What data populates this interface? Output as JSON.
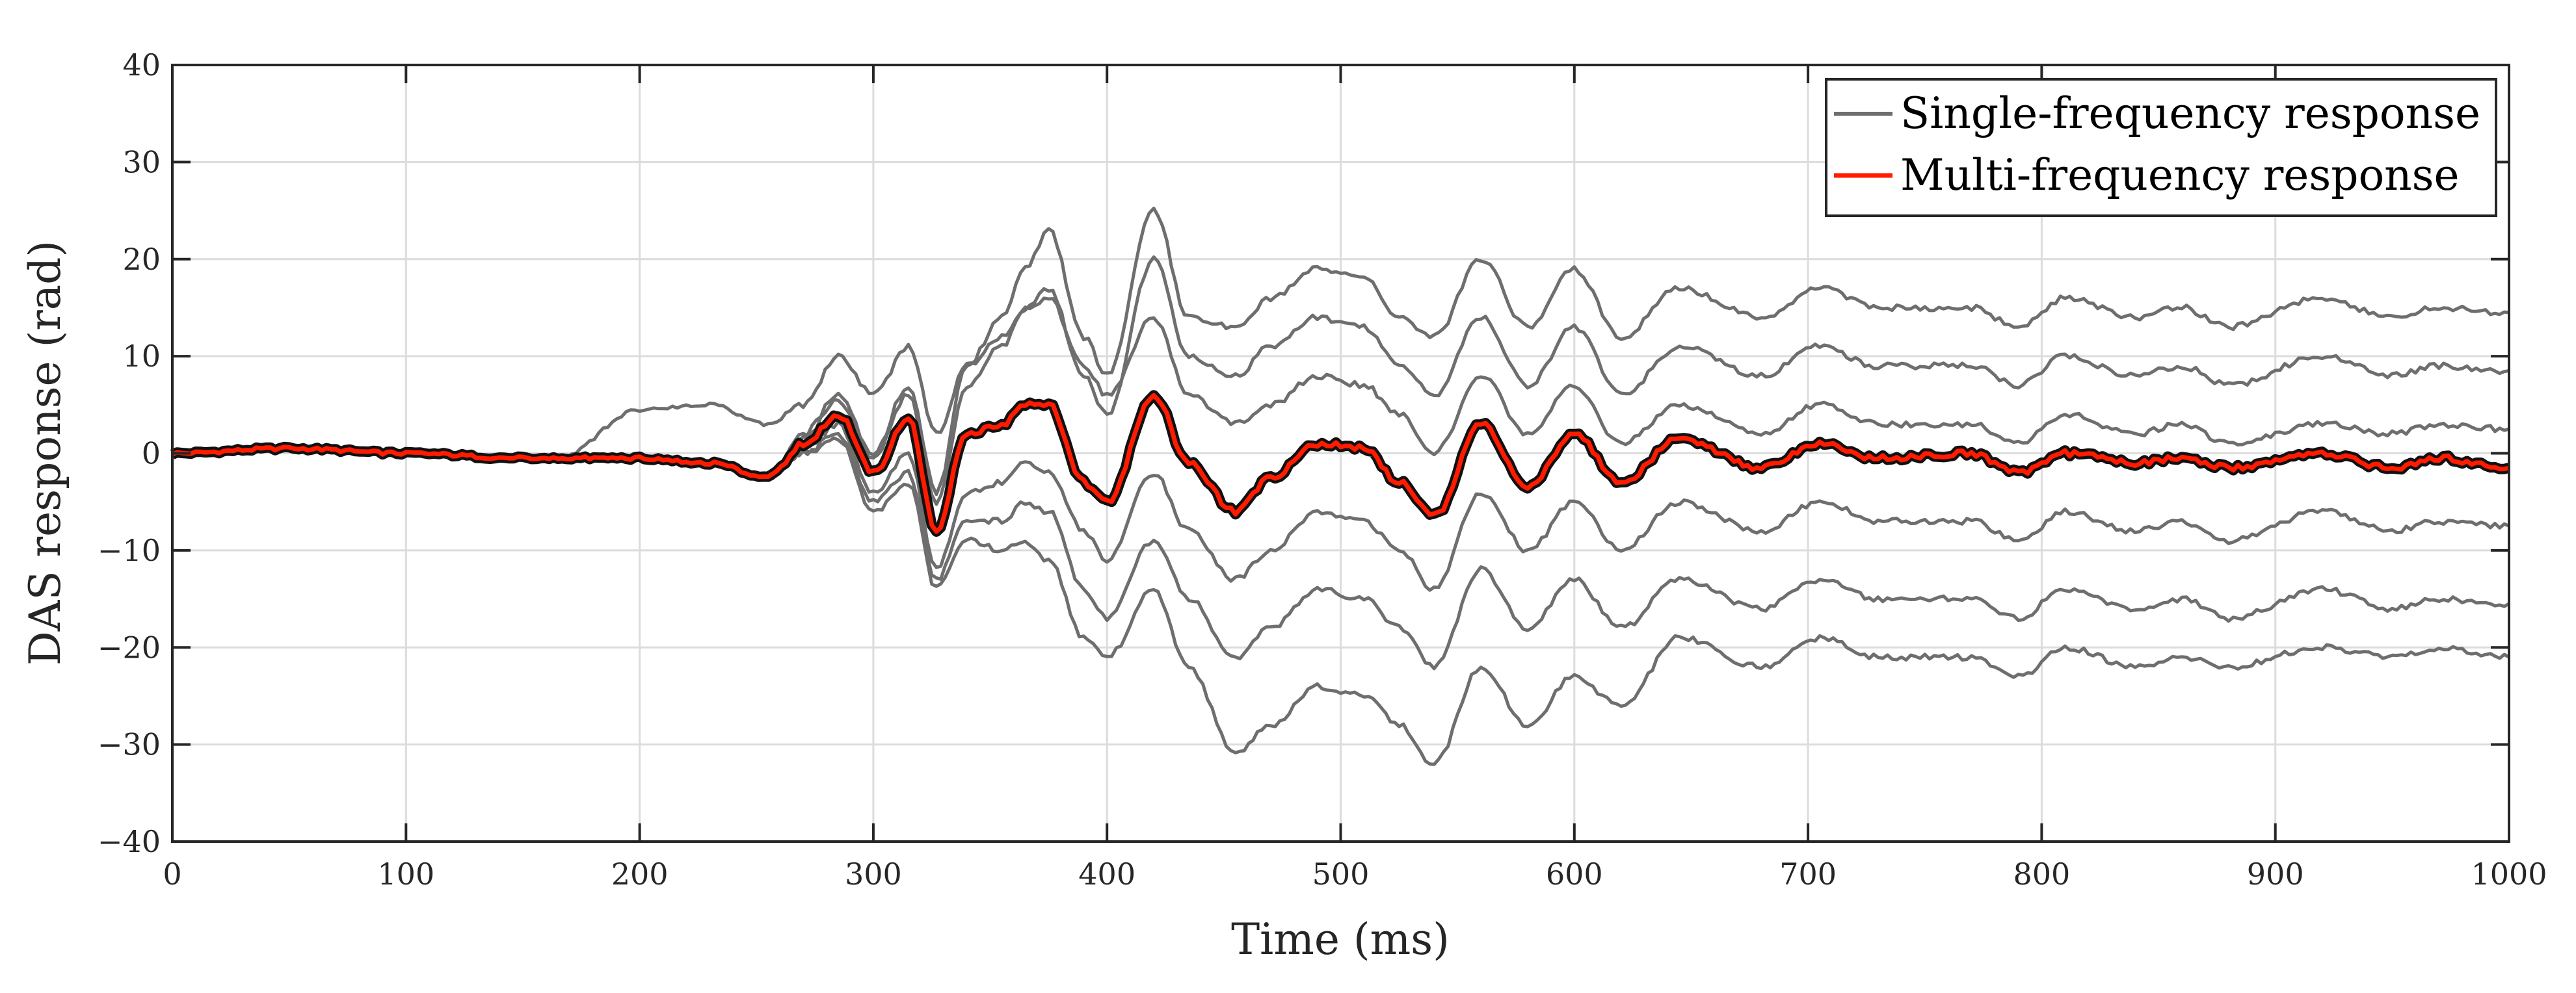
{
  "chart_data": {
    "type": "line",
    "title": "",
    "xlabel": "Time (ms)",
    "ylabel": "DAS response (rad)",
    "xlim": [
      0,
      1000
    ],
    "ylim": [
      -40,
      40
    ],
    "xticks": [
      0,
      100,
      200,
      300,
      400,
      500,
      600,
      700,
      800,
      900,
      1000
    ],
    "yticks": [
      -40,
      -30,
      -20,
      -10,
      0,
      10,
      20,
      30,
      40
    ],
    "xtick_labels": [
      "0",
      "100",
      "200",
      "300",
      "400",
      "500",
      "600",
      "700",
      "800",
      "900",
      "1000"
    ],
    "ytick_labels": [
      "−40",
      "−30",
      "−20",
      "−10",
      "0",
      "10",
      "20",
      "30",
      "40"
    ],
    "grid": true,
    "legend": {
      "position": "top-right",
      "entries": [
        "Single-frequency response",
        "Multi-frequency response"
      ]
    },
    "x": [
      0,
      50,
      100,
      150,
      165,
      200,
      230,
      255,
      270,
      285,
      300,
      315,
      327,
      340,
      355,
      365,
      375,
      390,
      400,
      420,
      435,
      455,
      470,
      490,
      510,
      525,
      540,
      560,
      580,
      600,
      620,
      645,
      680,
      705,
      730,
      770,
      790,
      810,
      840,
      860,
      880,
      920,
      950,
      970,
      1000
    ],
    "series": [
      {
        "name": "Multi-frequency response",
        "color": "#ff1a00",
        "values": [
          0,
          0.5,
          0,
          -0.5,
          -0.5,
          -0.5,
          -1,
          -2.5,
          1,
          4,
          -2,
          3.5,
          -8,
          2,
          3,
          5,
          5,
          -3,
          -5,
          6,
          -1,
          -6,
          -2.5,
          1,
          0.5,
          -3,
          -6.5,
          3,
          -3.5,
          2,
          -3,
          1.5,
          -1.5,
          1,
          -0.5,
          0,
          -2,
          0,
          -1,
          -0.5,
          -1.5,
          0,
          -1.5,
          -0.5,
          -1.5
        ]
      },
      {
        "name": "Single-frequency response",
        "color": "#6e6e6e",
        "offset_end": 15,
        "values": [
          0,
          0.5,
          0,
          -0.5,
          -0.5,
          -0.5,
          -1,
          -2.5,
          2,
          6,
          0,
          7,
          -4,
          9,
          14,
          19,
          23,
          12,
          8,
          25,
          14,
          13,
          16,
          19,
          18,
          14,
          12,
          20,
          13,
          19,
          12,
          17,
          14,
          17,
          15,
          15,
          13,
          16,
          14,
          15,
          13,
          16,
          14,
          15,
          14.5
        ]
      },
      {
        "name": "Single-frequency response",
        "color": "#6e6e6e",
        "offset_end": 9,
        "values": [
          0,
          0.5,
          0,
          -0.5,
          -0.5,
          -0.5,
          -1,
          -2.5,
          1.5,
          5.5,
          -0.5,
          6,
          -5,
          7,
          11,
          15,
          17,
          8,
          4,
          20,
          10,
          8,
          11,
          14,
          13,
          9,
          6,
          14,
          7,
          13,
          6,
          11,
          8,
          11,
          9,
          9,
          7,
          10,
          8,
          9,
          7,
          10,
          8,
          9,
          8.5
        ]
      },
      {
        "name": "Single-frequency response",
        "color": "#6e6e6e",
        "offset_end": 3,
        "values": [
          0,
          0.5,
          0,
          -0.5,
          -0.5,
          4.5,
          5,
          3,
          5,
          10,
          6,
          11,
          2,
          9,
          12,
          15,
          16,
          9,
          6,
          14,
          6,
          3,
          5,
          8,
          7,
          4,
          0,
          8,
          2,
          7,
          1,
          5,
          2,
          5,
          3,
          3,
          1,
          4,
          2,
          3,
          1,
          3,
          2,
          3,
          2.5
        ]
      },
      {
        "name": "Single-frequency response",
        "color": "#6e6e6e",
        "offset_end": -3,
        "values": [
          0,
          0.5,
          0,
          -0.5,
          -0.5,
          -0.5,
          -1,
          -2.5,
          0.5,
          3,
          -4,
          0,
          -12,
          -4,
          -3,
          -1,
          -2,
          -8,
          -11,
          -2,
          -8,
          -13,
          -10,
          -6,
          -7,
          -10,
          -14,
          -4,
          -10,
          -5,
          -10,
          -5,
          -8,
          -5,
          -7,
          -7,
          -9,
          -6,
          -8,
          -7,
          -9,
          -6,
          -8,
          -7,
          -7.5
        ]
      },
      {
        "name": "Single-frequency response",
        "color": "#6e6e6e",
        "offset_end": -9,
        "values": [
          0,
          0.5,
          0,
          -0.5,
          -0.5,
          -0.5,
          -1,
          -2.5,
          0,
          2,
          -5,
          -2,
          -13,
          -7,
          -7,
          -5,
          -6,
          -14,
          -17,
          -9,
          -15,
          -21,
          -18,
          -14,
          -15,
          -18,
          -22,
          -12,
          -18,
          -13,
          -18,
          -13,
          -16,
          -13,
          -15,
          -15,
          -17,
          -14,
          -16,
          -15,
          -17,
          -14,
          -16,
          -15,
          -15.5
        ]
      },
      {
        "name": "Single-frequency response",
        "color": "#6e6e6e",
        "offset_end": -15,
        "values": [
          0,
          0.5,
          0,
          -0.5,
          -0.5,
          -0.5,
          -1,
          -2.5,
          0,
          1.5,
          -6,
          -3,
          -14,
          -9,
          -10,
          -9,
          -11,
          -19,
          -21,
          -14,
          -22,
          -31,
          -28,
          -24,
          -25,
          -28,
          -32,
          -22,
          -28,
          -23,
          -26,
          -19,
          -22,
          -19,
          -21,
          -21,
          -23,
          -20,
          -22,
          -21,
          -22,
          -20,
          -21,
          -20,
          -21
        ]
      }
    ]
  }
}
